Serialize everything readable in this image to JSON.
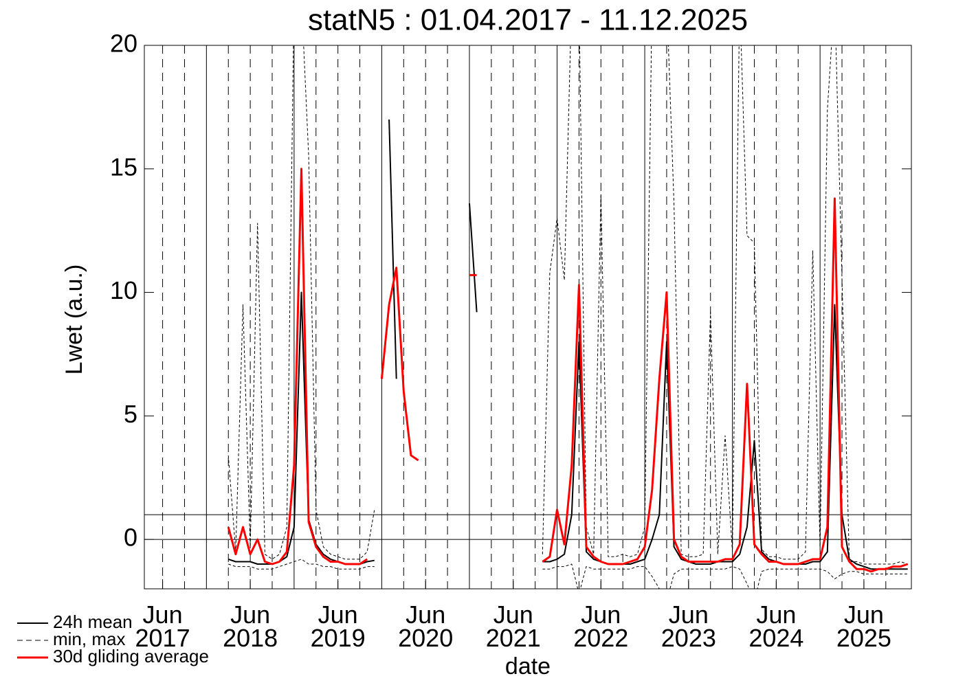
{
  "chart_data": {
    "type": "line",
    "title": "statN5 : 01.04.2017 - 11.12.2025",
    "x_label": "date",
    "y_label": "Lwet (a.u.)",
    "xlim": [
      "2017-04",
      "2025-12"
    ],
    "ylim": [
      -2,
      20
    ],
    "yticks": [
      0,
      5,
      10,
      15,
      20
    ],
    "xticks": [
      {
        "value": "2017-06",
        "label": "Jun 2017"
      },
      {
        "value": "2018-06",
        "label": "Jun 2018"
      },
      {
        "value": "2019-06",
        "label": "Jun 2019"
      },
      {
        "value": "2020-06",
        "label": "Jun 2020"
      },
      {
        "value": "2021-06",
        "label": "Jun 2021"
      },
      {
        "value": "2022-06",
        "label": "Jun 2022"
      },
      {
        "value": "2023-06",
        "label": "Jun 2023"
      },
      {
        "value": "2024-06",
        "label": "Jun 2024"
      },
      {
        "value": "2025-06",
        "label": "Jun 2025"
      }
    ],
    "xgrid_solid": [
      "2017-12",
      "2018-12",
      "2019-12",
      "2020-12",
      "2021-12",
      "2022-12",
      "2023-12",
      "2024-12"
    ],
    "xgrid_dashed": [
      "2017-06",
      "2017-09",
      "2018-03",
      "2018-06",
      "2018-09",
      "2019-03",
      "2019-06",
      "2019-09",
      "2020-03",
      "2020-06",
      "2020-09",
      "2021-03",
      "2021-06",
      "2021-09",
      "2022-03",
      "2022-06",
      "2022-09",
      "2023-03",
      "2023-06",
      "2023-09",
      "2024-03",
      "2024-06",
      "2024-09",
      "2025-03",
      "2025-06",
      "2025-09"
    ],
    "hlines": [
      0,
      1
    ],
    "legend": "below-left",
    "x": [
      "2017-04",
      "2017-05",
      "2017-06",
      "2017-07",
      "2017-08",
      "2017-09",
      "2017-10",
      "2017-11",
      "2017-12",
      "2018-01",
      "2018-02",
      "2018-03",
      "2018-04",
      "2018-05",
      "2018-06",
      "2018-07",
      "2018-08",
      "2018-09",
      "2018-10",
      "2018-11",
      "2018-12",
      "2019-01",
      "2019-02",
      "2019-03",
      "2019-04",
      "2019-05",
      "2019-06",
      "2019-07",
      "2019-08",
      "2019-09",
      "2019-10",
      "2019-11",
      "2019-12",
      "2020-01",
      "2020-02",
      "2020-03",
      "2020-04",
      "2020-05",
      "2020-06",
      "2020-07",
      "2020-08",
      "2020-09",
      "2020-10",
      "2020-11",
      "2020-12",
      "2021-01",
      "2021-02",
      "2021-03",
      "2021-04",
      "2021-05",
      "2021-06",
      "2021-07",
      "2021-08",
      "2021-09",
      "2021-10",
      "2021-11",
      "2021-12",
      "2022-01",
      "2022-02",
      "2022-03",
      "2022-04",
      "2022-05",
      "2022-06",
      "2022-07",
      "2022-08",
      "2022-09",
      "2022-10",
      "2022-11",
      "2022-12",
      "2023-01",
      "2023-02",
      "2023-03",
      "2023-04",
      "2023-05",
      "2023-06",
      "2023-07",
      "2023-08",
      "2023-09",
      "2023-10",
      "2023-11",
      "2023-12",
      "2024-01",
      "2024-02",
      "2024-03",
      "2024-04",
      "2024-05",
      "2024-06",
      "2024-07",
      "2024-08",
      "2024-09",
      "2024-10",
      "2024-11",
      "2024-12",
      "2025-01",
      "2025-02",
      "2025-03",
      "2025-04",
      "2025-05",
      "2025-06",
      "2025-07",
      "2025-08",
      "2025-09",
      "2025-10",
      "2025-11",
      "2025-12"
    ],
    "series": [
      {
        "name": "24h mean",
        "color": "#000000",
        "width": 2,
        "dash": false,
        "values": [
          null,
          null,
          null,
          null,
          null,
          null,
          null,
          null,
          null,
          null,
          null,
          -0.8,
          -0.9,
          -0.9,
          -0.9,
          -1.0,
          -1.0,
          -1.0,
          -0.9,
          -0.7,
          0.5,
          10.0,
          0.8,
          -0.2,
          -0.6,
          -0.8,
          -0.9,
          -1.0,
          -1.0,
          -1.0,
          -0.9,
          -0.85,
          null,
          17.0,
          6.5,
          null,
          null,
          null,
          null,
          null,
          null,
          null,
          null,
          null,
          13.6,
          9.2,
          null,
          null,
          null,
          null,
          null,
          null,
          null,
          null,
          -0.9,
          -0.9,
          -0.8,
          -0.6,
          1.0,
          8.0,
          -0.5,
          -0.8,
          -0.9,
          -1.0,
          -1.0,
          -1.0,
          -1.0,
          -0.9,
          -0.8,
          0.0,
          1.0,
          8.0,
          -0.3,
          -0.8,
          -0.9,
          -1.0,
          -1.0,
          -1.0,
          -0.9,
          -0.9,
          -0.9,
          -0.6,
          0.5,
          4.0,
          -0.5,
          -0.8,
          -0.9,
          -1.0,
          -1.0,
          -1.0,
          -1.0,
          -0.9,
          -0.9,
          -0.5,
          9.5,
          1.0,
          -0.8,
          -1.0,
          -1.1,
          -1.2,
          -1.2,
          -1.2,
          -1.2,
          -1.2,
          -1.2
        ]
      },
      {
        "name": "min, max",
        "color": "#000000",
        "width": 1,
        "dash": true,
        "values": [
          null,
          null,
          null,
          null,
          null,
          null,
          null,
          null,
          null,
          null,
          null,
          3.4,
          -0.5,
          9.5,
          -0.3,
          12.8,
          -0.6,
          -0.8,
          -0.6,
          0.5,
          22,
          22,
          15.5,
          1.2,
          -0.3,
          -0.6,
          -0.7,
          -0.8,
          -0.8,
          -0.8,
          -0.5,
          1.2,
          null,
          null,
          null,
          null,
          null,
          null,
          null,
          null,
          null,
          null,
          null,
          null,
          null,
          null,
          null,
          null,
          null,
          null,
          null,
          null,
          null,
          null,
          -0.6,
          10.8,
          13.0,
          10.5,
          22,
          22,
          0.5,
          -0.6,
          14.0,
          -0.7,
          -0.7,
          -0.6,
          -0.7,
          -0.6,
          0.5,
          22,
          22,
          22,
          13.6,
          -0.6,
          -0.7,
          -0.7,
          -0.6,
          9.2,
          -0.6,
          4.2,
          -0.5,
          22,
          12.3,
          12.0,
          -0.4,
          -0.7,
          -0.7,
          -0.8,
          -0.8,
          -0.8,
          -0.5,
          11.7,
          -0.3,
          17.4,
          22,
          10.6,
          -0.9,
          -0.9,
          -1.0,
          -1.0,
          -1.0,
          -1.0,
          -1.0,
          -0.9,
          -1.0
        ],
        "low": [
          null,
          null,
          null,
          null,
          null,
          null,
          null,
          null,
          null,
          null,
          null,
          -1.0,
          -1.1,
          -1.1,
          -1.1,
          -1.2,
          -1.2,
          -1.2,
          -1.1,
          -1.0,
          -0.9,
          -0.8,
          -1.0,
          -1.0,
          -1.1,
          -1.1,
          -1.2,
          -1.2,
          -1.2,
          -1.2,
          -1.1,
          -1.1,
          null,
          null,
          null,
          null,
          null,
          null,
          null,
          null,
          null,
          null,
          null,
          null,
          null,
          null,
          null,
          null,
          null,
          null,
          null,
          null,
          null,
          null,
          -1.2,
          -1.2,
          -1.1,
          -1.1,
          -1.0,
          -2.2,
          -1.1,
          -1.2,
          -1.2,
          -1.2,
          -1.2,
          -1.2,
          -1.2,
          -1.1,
          -1.1,
          -1.5,
          -2.0,
          -2.5,
          -1.4,
          -1.2,
          -1.2,
          -1.2,
          -1.2,
          -1.2,
          -1.2,
          -1.2,
          -1.1,
          -1.2,
          -1.8,
          -2.5,
          -1.3,
          -1.2,
          -1.2,
          -1.2,
          -1.2,
          -1.2,
          -1.2,
          -1.2,
          -1.2,
          -1.3,
          -1.6,
          -1.4,
          -1.3,
          -1.3,
          -1.4,
          -1.4,
          -1.4,
          -1.4,
          -1.4,
          -1.4,
          -1.4
        ]
      },
      {
        "name": "30d gliding average",
        "color": "#ff0000",
        "width": 3,
        "dash": false,
        "values": [
          null,
          null,
          null,
          null,
          null,
          null,
          null,
          null,
          null,
          null,
          null,
          0.5,
          -0.6,
          0.5,
          -0.6,
          0.0,
          -0.9,
          -1.0,
          -0.9,
          -0.5,
          3.0,
          15.0,
          0.7,
          -0.3,
          -0.7,
          -0.9,
          -0.9,
          -1.0,
          -1.0,
          -1.0,
          -0.8,
          null,
          6.5,
          9.5,
          11.0,
          6.0,
          3.4,
          3.2,
          null,
          null,
          null,
          null,
          null,
          null,
          10.7,
          10.7,
          null,
          null,
          null,
          null,
          null,
          null,
          null,
          null,
          -0.9,
          -0.7,
          1.2,
          -0.2,
          3.0,
          10.3,
          -0.3,
          -0.7,
          -0.9,
          -1.0,
          -1.0,
          -1.0,
          -0.9,
          -0.8,
          -0.3,
          2.0,
          6.5,
          10.0,
          0.0,
          -0.7,
          -0.9,
          -0.9,
          -0.9,
          -0.9,
          -0.9,
          -0.8,
          -0.8,
          -0.2,
          6.3,
          -0.2,
          -0.6,
          -0.9,
          -0.9,
          -1.0,
          -1.0,
          -1.0,
          -0.9,
          -0.8,
          -0.8,
          0.5,
          13.8,
          -0.3,
          -0.9,
          -1.2,
          -1.2,
          -1.3,
          -1.2,
          -1.2,
          -1.1,
          -1.1,
          -1.0
        ]
      }
    ]
  }
}
